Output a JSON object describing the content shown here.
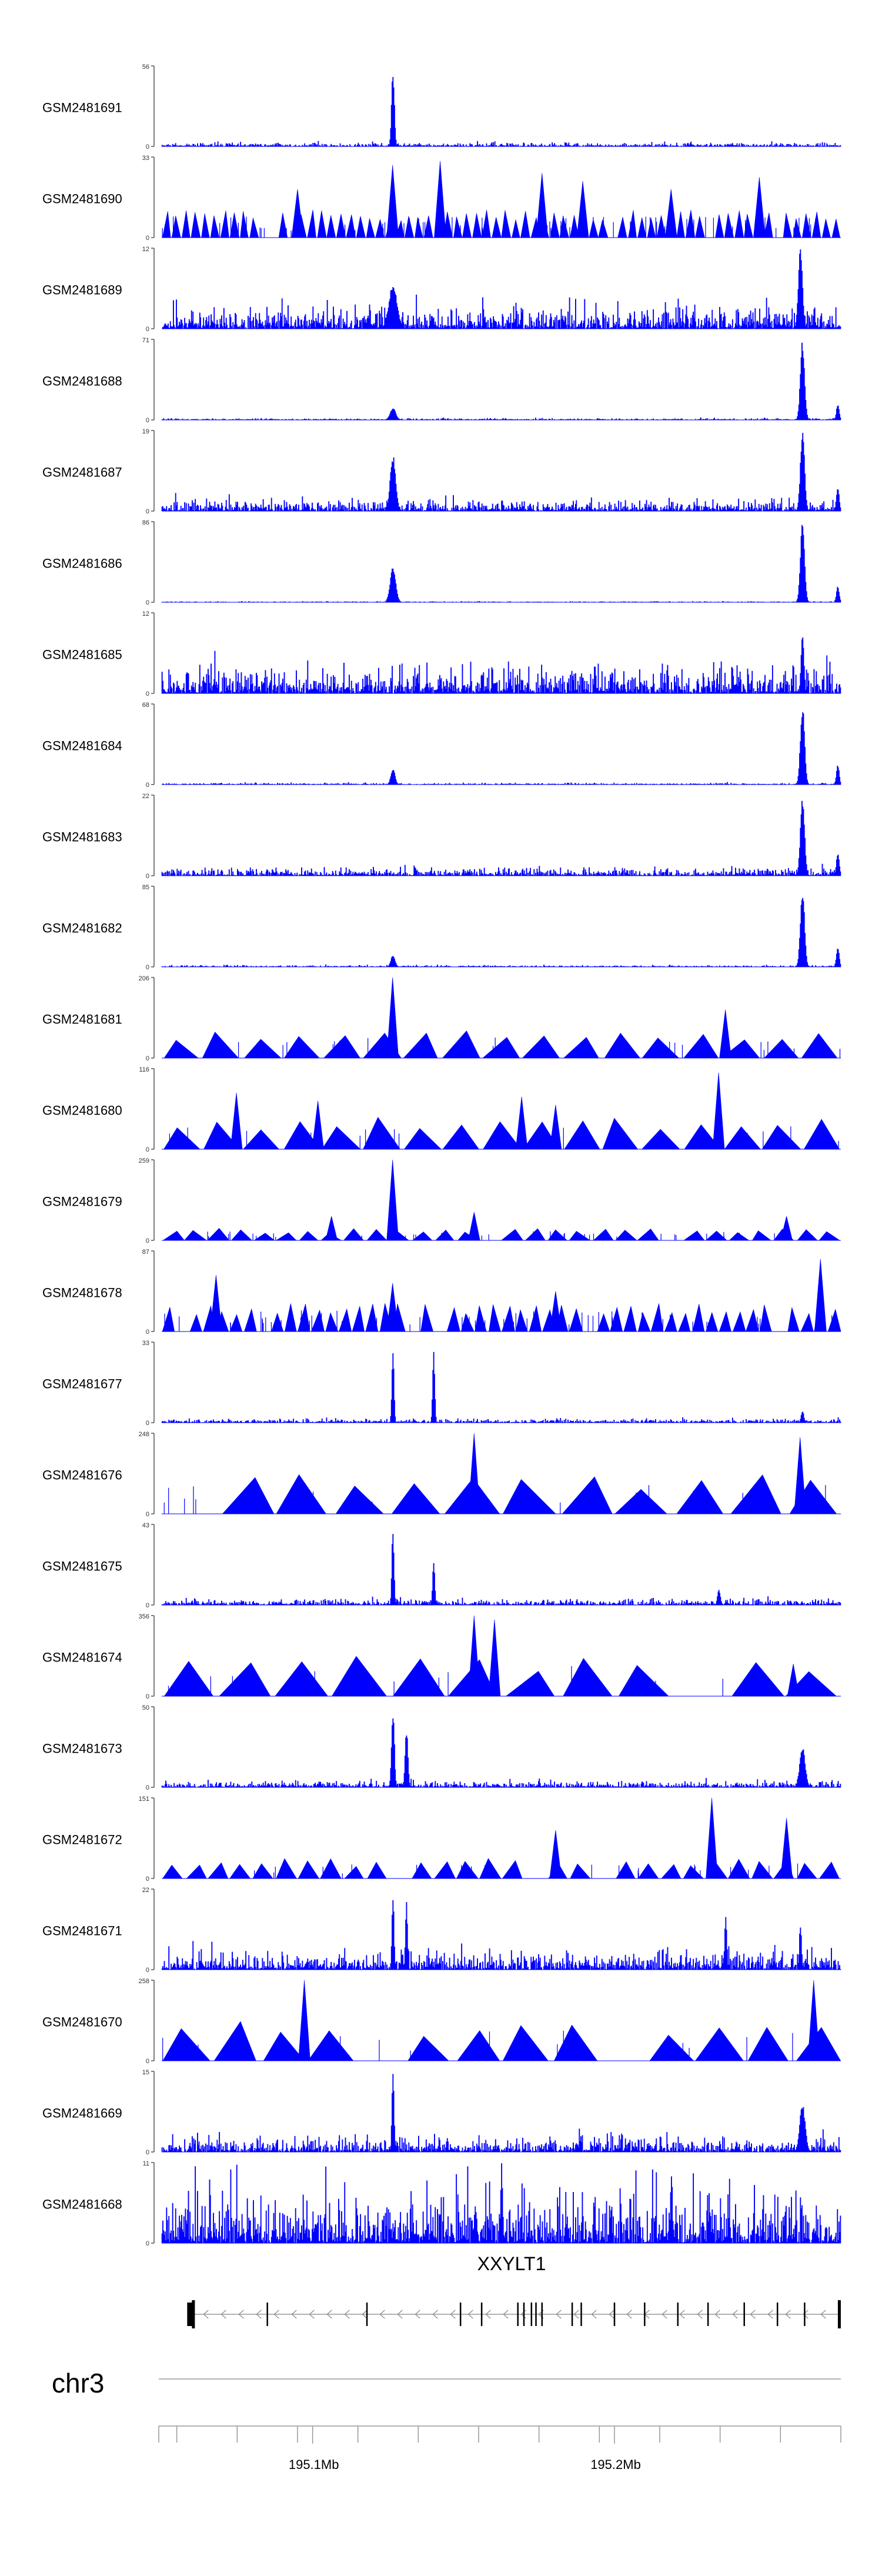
{
  "chart_data": {
    "type": "genome-browser-coverage-tracks",
    "chromosome": "chr3",
    "region": {
      "start": 195050000,
      "end": 195275000
    },
    "axis_tick_labels": [
      {
        "pos": 195100000,
        "label": "195.1Mb"
      },
      {
        "pos": 195200000,
        "label": "195.2Mb"
      }
    ],
    "gene": {
      "name": "XXYLT1",
      "strand": "-",
      "start": 195060000,
      "end": 195275000,
      "exons": [
        195060500,
        195085000,
        195118000,
        195149000,
        195156000,
        195168000,
        195170000,
        195172500,
        195174000,
        195176000,
        195186000,
        195189000,
        195200000,
        195210000,
        195221000,
        195231000,
        195243000,
        195254000,
        195263000,
        195274500
      ]
    },
    "track_color": "#0000ff",
    "tracks": [
      {
        "name": "GSM2481691",
        "ymax": "56",
        "style": "noise",
        "noise": 0.05,
        "peaks": [
          [
            0.34,
            1.0,
            0.002
          ]
        ],
        "seed": 1
      },
      {
        "name": "GSM2481690",
        "ymax": "33",
        "style": "triangles",
        "count": 70,
        "tri": 0.35,
        "spikes": [
          [
            0.34,
            0.9
          ],
          [
            0.41,
            0.95
          ],
          [
            0.2,
            0.6
          ],
          [
            0.56,
            0.8
          ],
          [
            0.62,
            0.7
          ],
          [
            0.75,
            0.6
          ],
          [
            0.88,
            0.75
          ]
        ],
        "seed": 2
      },
      {
        "name": "GSM2481689",
        "ymax": "12",
        "style": "noise",
        "noise": 0.3,
        "peaks": [
          [
            0.34,
            0.55,
            0.006
          ],
          [
            0.94,
            1.0,
            0.003
          ]
        ],
        "seed": 3
      },
      {
        "name": "GSM2481688",
        "ymax": "71",
        "style": "noise",
        "noise": 0.02,
        "peaks": [
          [
            0.34,
            0.15,
            0.004
          ],
          [
            0.943,
            1.0,
            0.003
          ],
          [
            0.995,
            0.2,
            0.002
          ]
        ],
        "seed": 4
      },
      {
        "name": "GSM2481687",
        "ymax": "19",
        "style": "noise",
        "noise": 0.15,
        "peaks": [
          [
            0.34,
            0.7,
            0.004
          ],
          [
            0.943,
            1.0,
            0.003
          ],
          [
            0.995,
            0.3,
            0.002
          ]
        ],
        "seed": 5
      },
      {
        "name": "GSM2481686",
        "ymax": "86",
        "style": "noise",
        "noise": 0.01,
        "peaks": [
          [
            0.34,
            0.45,
            0.004
          ],
          [
            0.943,
            1.0,
            0.003
          ],
          [
            0.995,
            0.2,
            0.002
          ]
        ],
        "seed": 6
      },
      {
        "name": "GSM2481685",
        "ymax": "12",
        "style": "noise",
        "noise": 0.35,
        "peaks": [
          [
            0.943,
            0.8,
            0.002
          ]
        ],
        "seed": 7
      },
      {
        "name": "GSM2481684",
        "ymax": "68",
        "style": "noise",
        "noise": 0.02,
        "peaks": [
          [
            0.34,
            0.2,
            0.003
          ],
          [
            0.943,
            1.0,
            0.003
          ],
          [
            0.995,
            0.25,
            0.002
          ]
        ],
        "seed": 8
      },
      {
        "name": "GSM2481683",
        "ymax": "22",
        "style": "noise",
        "noise": 0.1,
        "peaks": [
          [
            0.943,
            1.0,
            0.003
          ],
          [
            0.995,
            0.3,
            0.002
          ]
        ],
        "seed": 9
      },
      {
        "name": "GSM2481682",
        "ymax": "85",
        "style": "noise",
        "noise": 0.02,
        "peaks": [
          [
            0.34,
            0.15,
            0.003
          ],
          [
            0.943,
            1.0,
            0.003
          ],
          [
            0.995,
            0.25,
            0.002
          ]
        ],
        "seed": 10
      },
      {
        "name": "GSM2481681",
        "ymax": "206",
        "style": "triangles",
        "count": 17,
        "tri": 0.35,
        "spikes": [
          [
            0.34,
            1.0
          ],
          [
            0.83,
            0.6
          ]
        ],
        "seed": 11
      },
      {
        "name": "GSM2481680",
        "ymax": "116",
        "style": "triangles",
        "count": 17,
        "tri": 0.4,
        "spikes": [
          [
            0.11,
            0.7
          ],
          [
            0.23,
            0.6
          ],
          [
            0.53,
            0.65
          ],
          [
            0.58,
            0.55
          ],
          [
            0.82,
            0.95
          ]
        ],
        "seed": 12
      },
      {
        "name": "GSM2481679",
        "ymax": "259",
        "style": "triangles",
        "count": 30,
        "tri": 0.15,
        "spikes": [
          [
            0.34,
            1.0
          ],
          [
            0.25,
            0.3
          ],
          [
            0.46,
            0.35
          ],
          [
            0.92,
            0.3
          ]
        ],
        "seed": 13
      },
      {
        "name": "GSM2481678",
        "ymax": "87",
        "style": "triangles",
        "count": 50,
        "tri": 0.35,
        "spikes": [
          [
            0.08,
            0.7
          ],
          [
            0.34,
            0.6
          ],
          [
            0.58,
            0.5
          ],
          [
            0.97,
            0.9
          ]
        ],
        "seed": 14
      },
      {
        "name": "GSM2481677",
        "ymax": "33",
        "style": "noise",
        "noise": 0.05,
        "peaks": [
          [
            0.34,
            0.95,
            0.0015
          ],
          [
            0.4,
            0.9,
            0.0015
          ],
          [
            0.943,
            0.15,
            0.002
          ]
        ],
        "seed": 15
      },
      {
        "name": "GSM2481676",
        "ymax": "248",
        "style": "triangles",
        "count": 12,
        "tri": 0.5,
        "spikes": [
          [
            0.46,
            1.0
          ],
          [
            0.94,
            0.95
          ]
        ],
        "seed": 16
      },
      {
        "name": "GSM2481675",
        "ymax": "43",
        "style": "noise",
        "noise": 0.08,
        "peaks": [
          [
            0.34,
            1.0,
            0.0015
          ],
          [
            0.4,
            0.55,
            0.0015
          ],
          [
            0.82,
            0.2,
            0.002
          ]
        ],
        "seed": 17
      },
      {
        "name": "GSM2481674",
        "ymax": "356",
        "style": "triangles",
        "count": 12,
        "tri": 0.5,
        "spikes": [
          [
            0.46,
            1.0
          ],
          [
            0.49,
            0.95
          ],
          [
            0.93,
            0.4
          ]
        ],
        "seed": 18
      },
      {
        "name": "GSM2481673",
        "ymax": "50",
        "style": "noise",
        "noise": 0.08,
        "peaks": [
          [
            0.34,
            1.0,
            0.002
          ],
          [
            0.36,
            0.75,
            0.002
          ],
          [
            0.943,
            0.5,
            0.004
          ]
        ],
        "seed": 19
      },
      {
        "name": "GSM2481672",
        "ymax": "151",
        "style": "triangles",
        "count": 30,
        "tri": 0.25,
        "spikes": [
          [
            0.58,
            0.6
          ],
          [
            0.81,
            1.0
          ],
          [
            0.92,
            0.75
          ]
        ],
        "seed": 20
      },
      {
        "name": "GSM2481671",
        "ymax": "22",
        "style": "noise",
        "noise": 0.25,
        "peaks": [
          [
            0.34,
            0.95,
            0.0015
          ],
          [
            0.36,
            0.85,
            0.0015
          ],
          [
            0.83,
            0.75,
            0.0015
          ],
          [
            0.94,
            0.6,
            0.0015
          ]
        ],
        "seed": 21
      },
      {
        "name": "GSM2481670",
        "ymax": "258",
        "style": "triangles",
        "count": 14,
        "tri": 0.5,
        "spikes": [
          [
            0.21,
            1.0
          ],
          [
            0.96,
            1.0
          ]
        ],
        "seed": 22
      },
      {
        "name": "GSM2481669",
        "ymax": "15",
        "style": "noise",
        "noise": 0.2,
        "peaks": [
          [
            0.34,
            1.0,
            0.0015
          ],
          [
            0.943,
            0.6,
            0.004
          ]
        ],
        "seed": 23
      },
      {
        "name": "GSM2481668",
        "ymax": "11",
        "style": "noise",
        "noise": 0.7,
        "peaks": [
          [
            0.5,
            1.0,
            0.0015
          ],
          [
            0.75,
            0.95,
            0.0015
          ]
        ],
        "seed": 24
      }
    ]
  }
}
